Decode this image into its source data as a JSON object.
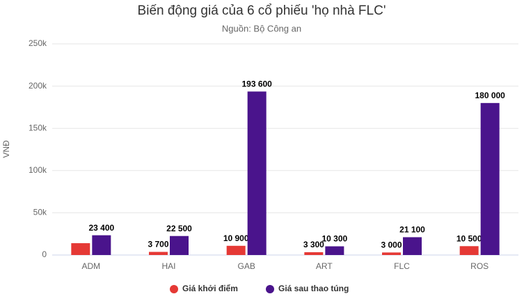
{
  "chart_data": {
    "type": "bar",
    "title": "Biến động giá của 6 cổ phiếu 'họ nhà FLC'",
    "subtitle": "Nguồn: Bộ Công an",
    "y_label": "VNĐ",
    "categories": [
      "ADM",
      "HAI",
      "GAB",
      "ART",
      "FLC",
      "ROS"
    ],
    "series": [
      {
        "name": "Giá khởi điểm",
        "color": "#e53935",
        "values": [
          14000,
          3700,
          10900,
          3300,
          3000,
          10500
        ],
        "value_labels": [
          null,
          "3 700",
          "10 900",
          "3 300",
          "3 000",
          "10 500"
        ]
      },
      {
        "name": "Giá sau thao túng",
        "color": "#4a148c",
        "values": [
          23400,
          22500,
          193600,
          10300,
          21100,
          180000
        ],
        "value_labels": [
          "23 400",
          "22 500",
          "193 600",
          "10 300",
          "21 100",
          "180 000"
        ]
      }
    ],
    "ylim": [
      0,
      250000
    ],
    "yticks": [
      0,
      {
        "value": 50000,
        "label": "50k"
      },
      {
        "value": 100000,
        "label": "100k"
      },
      {
        "value": 150000,
        "label": "150k"
      },
      {
        "value": 200000,
        "label": "200k"
      },
      {
        "value": 250000,
        "label": "250k"
      }
    ],
    "grid": true,
    "legend": "bottom"
  }
}
